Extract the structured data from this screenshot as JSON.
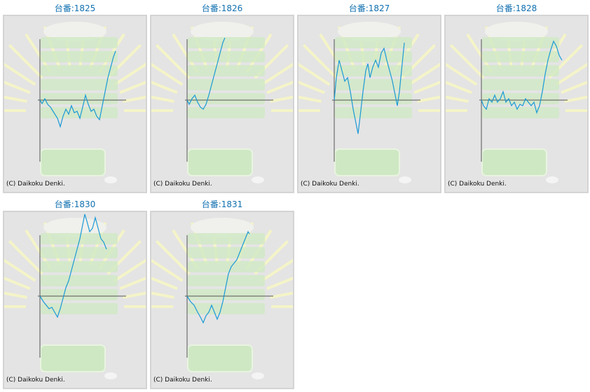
{
  "copyright": "(C) Daikoku Denki.",
  "colors": {
    "title": "#1070b0",
    "line": "#1a9ad6",
    "axis": "#555555",
    "panel_bg": "#e4e4e4"
  },
  "chart_data": [
    {
      "type": "line",
      "title": "台番:1825",
      "x": [
        0,
        3,
        7,
        11,
        15,
        20,
        25,
        29,
        33,
        37,
        41,
        45,
        49,
        53,
        57,
        61,
        65,
        69,
        73,
        77,
        81,
        85,
        89,
        93,
        97,
        101,
        105,
        108
      ],
      "values": [
        0,
        -5,
        2,
        -6,
        -10,
        -18,
        -26,
        -38,
        -23,
        -13,
        -20,
        -8,
        -18,
        -16,
        -26,
        -10,
        7,
        -6,
        -16,
        -13,
        -23,
        -28,
        -8,
        12,
        32,
        47,
        62,
        70
      ]
    },
    {
      "type": "line",
      "title": "台番:1826",
      "x": [
        0,
        3,
        7,
        11,
        15,
        19,
        23,
        27,
        31,
        35,
        39,
        43,
        47,
        51,
        54
      ],
      "values": [
        0,
        -6,
        2,
        7,
        -3,
        -10,
        -13,
        -6,
        7,
        22,
        37,
        52,
        67,
        82,
        89
      ]
    },
    {
      "type": "line",
      "title": "台番:1827",
      "x": [
        0,
        3,
        7,
        11,
        15,
        19,
        23,
        27,
        31,
        34,
        37,
        41,
        45,
        48,
        51,
        55,
        59,
        63,
        67,
        71,
        75,
        79,
        83,
        87,
        90,
        93,
        97,
        100
      ],
      "values": [
        0,
        32,
        57,
        42,
        27,
        32,
        12,
        -13,
        -33,
        -48,
        -23,
        12,
        42,
        52,
        32,
        47,
        57,
        47,
        67,
        74,
        57,
        42,
        27,
        7,
        -8,
        12,
        52,
        82
      ]
    },
    {
      "type": "line",
      "title": "台番:1828",
      "x": [
        0,
        3,
        7,
        11,
        15,
        19,
        23,
        27,
        31,
        35,
        39,
        43,
        47,
        51,
        55,
        59,
        63,
        67,
        71,
        75,
        79,
        83,
        87,
        91,
        95,
        99,
        103,
        107,
        111,
        115
      ],
      "values": [
        0,
        -8,
        -13,
        2,
        -3,
        7,
        -3,
        2,
        12,
        -3,
        2,
        -8,
        -3,
        -13,
        -6,
        -8,
        2,
        -3,
        -8,
        -3,
        -18,
        -8,
        12,
        37,
        57,
        72,
        84,
        77,
        64,
        57
      ]
    },
    {
      "type": "line",
      "title": "台番:1830",
      "x": [
        0,
        5,
        9,
        13,
        17,
        21,
        25,
        29,
        33,
        37,
        41,
        45,
        49,
        53,
        57,
        61,
        64,
        67,
        71,
        75,
        79,
        83,
        87,
        91,
        95
      ],
      "values": [
        0,
        -8,
        -13,
        -18,
        -16,
        -23,
        -30,
        -18,
        -3,
        12,
        22,
        37,
        52,
        67,
        82,
        102,
        117,
        107,
        92,
        97,
        112,
        97,
        82,
        77,
        67
      ]
    },
    {
      "type": "line",
      "title": "台番:1831",
      "x": [
        0,
        5,
        10,
        15,
        19,
        23,
        27,
        31,
        35,
        39,
        43,
        47,
        51,
        55,
        59,
        63,
        67,
        71,
        75,
        79,
        83,
        87,
        89
      ],
      "values": [
        0,
        -8,
        -13,
        -23,
        -30,
        -38,
        -28,
        -23,
        -13,
        -23,
        -33,
        -23,
        -8,
        12,
        32,
        42,
        47,
        52,
        62,
        72,
        82,
        92,
        89
      ]
    }
  ]
}
